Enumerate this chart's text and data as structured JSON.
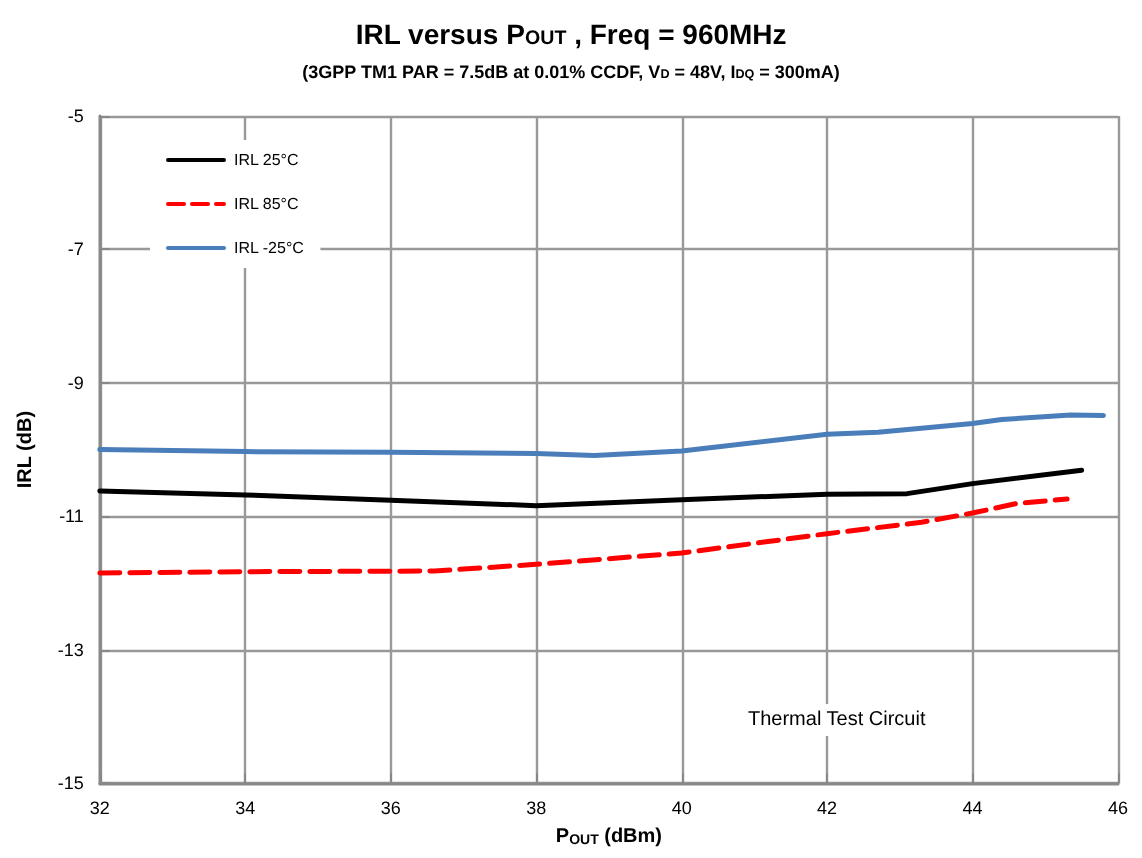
{
  "chart_data": {
    "type": "line",
    "title": "IRL versus P$_{OUT}$ , Freq = 960MHz",
    "subtitle": "(3GPP TM1 PAR = 7.5dB at 0.01% CCDF, V$_{D}$ = 48V, I$_{DQ}$ = 300mA)",
    "xlabel": "P$_{OUT}$ (dBm)",
    "ylabel": "IRL (dB)",
    "annotations": [
      "Thermal Test Circuit"
    ],
    "xlim": [
      32,
      46
    ],
    "xticks": [
      32,
      34,
      36,
      38,
      40,
      42,
      44,
      46
    ],
    "ylim": [
      -15,
      -5
    ],
    "yticks": [
      -15,
      -13,
      -11,
      -9,
      -7,
      -5
    ],
    "grid": true,
    "legend": "top left",
    "marker": "none",
    "series": [
      {
        "name": "IRL 25°C",
        "color": "#000000",
        "line_style": "solid",
        "x": [
          32,
          34,
          36,
          38,
          40,
          42,
          43.1,
          44,
          45.5
        ],
        "values": [
          -10.62,
          -10.68,
          -10.76,
          -10.84,
          -10.75,
          -10.67,
          -10.66,
          -10.51,
          -10.31
        ]
      },
      {
        "name": "IRL 85°C",
        "color": "#ff0000",
        "line_style": "dashed",
        "x": [
          32,
          34,
          36.6,
          38,
          40,
          42,
          43.3,
          44,
          44.6,
          45.3
        ],
        "values": [
          -11.85,
          -11.83,
          -11.82,
          -11.72,
          -11.55,
          -11.26,
          -11.09,
          -10.95,
          -10.81,
          -10.74
        ]
      },
      {
        "name": "IRL -25°C",
        "color": "#4a7ebb",
        "line_style": "solid",
        "x": [
          32,
          34,
          36,
          38,
          38.8,
          40,
          42,
          42.7,
          44,
          44.4,
          45.35,
          45.8
        ],
        "values": [
          -10.0,
          -10.03,
          -10.04,
          -10.06,
          -10.09,
          -10.02,
          -9.77,
          -9.74,
          -9.61,
          -9.55,
          -9.48,
          -9.49
        ]
      }
    ]
  }
}
